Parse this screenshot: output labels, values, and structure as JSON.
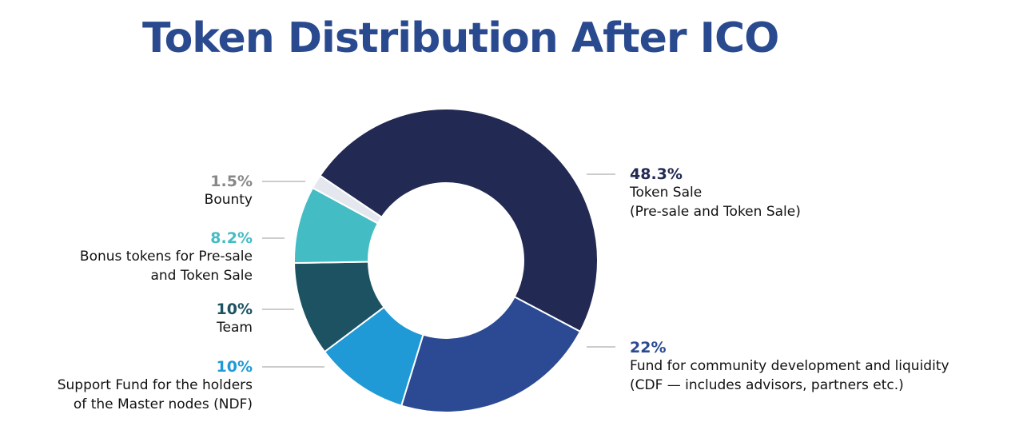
{
  "title": "Token Distribution After ICO",
  "chart_data": {
    "type": "pie",
    "style": "donut",
    "title": "Token Distribution After ICO",
    "slices": [
      {
        "value": 48.3,
        "percent_label": "48.3%",
        "label": "Token Sale\n(Pre-sale and Token Sale)",
        "color": "#222a53"
      },
      {
        "value": 22,
        "percent_label": "22%",
        "label": "Fund for community development and liquidity\n(CDF — includes advisors, partners etc.)",
        "color": "#2b4a93"
      },
      {
        "value": 10,
        "percent_label": "10%",
        "label": "Support Fund for the holders\nof the Master nodes (NDF)",
        "color": "#1f9ad6"
      },
      {
        "value": 10,
        "percent_label": "10%",
        "label": "Team",
        "color": "#1c5262"
      },
      {
        "value": 8.2,
        "percent_label": "8.2%",
        "label": "Bonus tokens for Pre-sale\nand Token Sale",
        "color": "#43bcc4"
      },
      {
        "value": 1.5,
        "percent_label": "1.5%",
        "label": "Bounty",
        "color": "#e4e8ee"
      }
    ],
    "percent_colors": [
      "#222a53",
      "#2b4a93",
      "#1f9ad6",
      "#1c5262",
      "#43bcc4",
      "#888888"
    ]
  }
}
